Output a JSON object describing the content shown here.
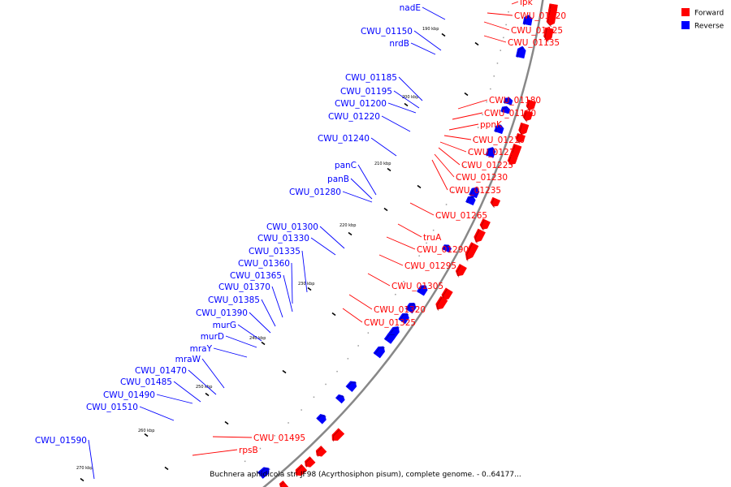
{
  "caption": "Buchnera aphidicola str. JF98 (Acyrthosiphon pisum), complete genome. - 0..64177...",
  "legend": [
    {
      "label": "Forward",
      "color": "#ff0000"
    },
    {
      "label": "Reverse",
      "color": "#0000ff"
    }
  ],
  "ticks": [
    "190 kbp",
    "200 kbp",
    "210 kbp",
    "220 kbp",
    "230 kbp",
    "240 kbp",
    "250 kbp",
    "260 kbp",
    "270 kbp"
  ],
  "genes_forward": [
    "ipk",
    "CWU_01120",
    "CWU_01125",
    "CWU_01135",
    "CWU_01180",
    "CWU_01190",
    "ppnK",
    "CWU_01210",
    "CWU_01215",
    "CWU_01225",
    "CWU_01230",
    "CWU_01235",
    "CWU_01265",
    "truA",
    "CWU_01290",
    "CWU_01295",
    "CWU_01305",
    "CWU_01320",
    "CWU_01325",
    "CWU_01495",
    "rpsB"
  ],
  "genes_reverse": [
    "nadE",
    "CWU_01150",
    "nrdB",
    "CWU_01185",
    "CWU_01195",
    "CWU_01200",
    "CWU_01220",
    "CWU_01240",
    "panC",
    "panB",
    "CWU_01280",
    "CWU_01300",
    "CWU_01330",
    "CWU_01335",
    "CWU_01360",
    "CWU_01365",
    "CWU_01370",
    "CWU_01385",
    "CWU_01390",
    "murG",
    "murD",
    "mraY",
    "mraW",
    "CWU_01470",
    "CWU_01485",
    "CWU_01490",
    "CWU_01510",
    "CWU_01590"
  ]
}
